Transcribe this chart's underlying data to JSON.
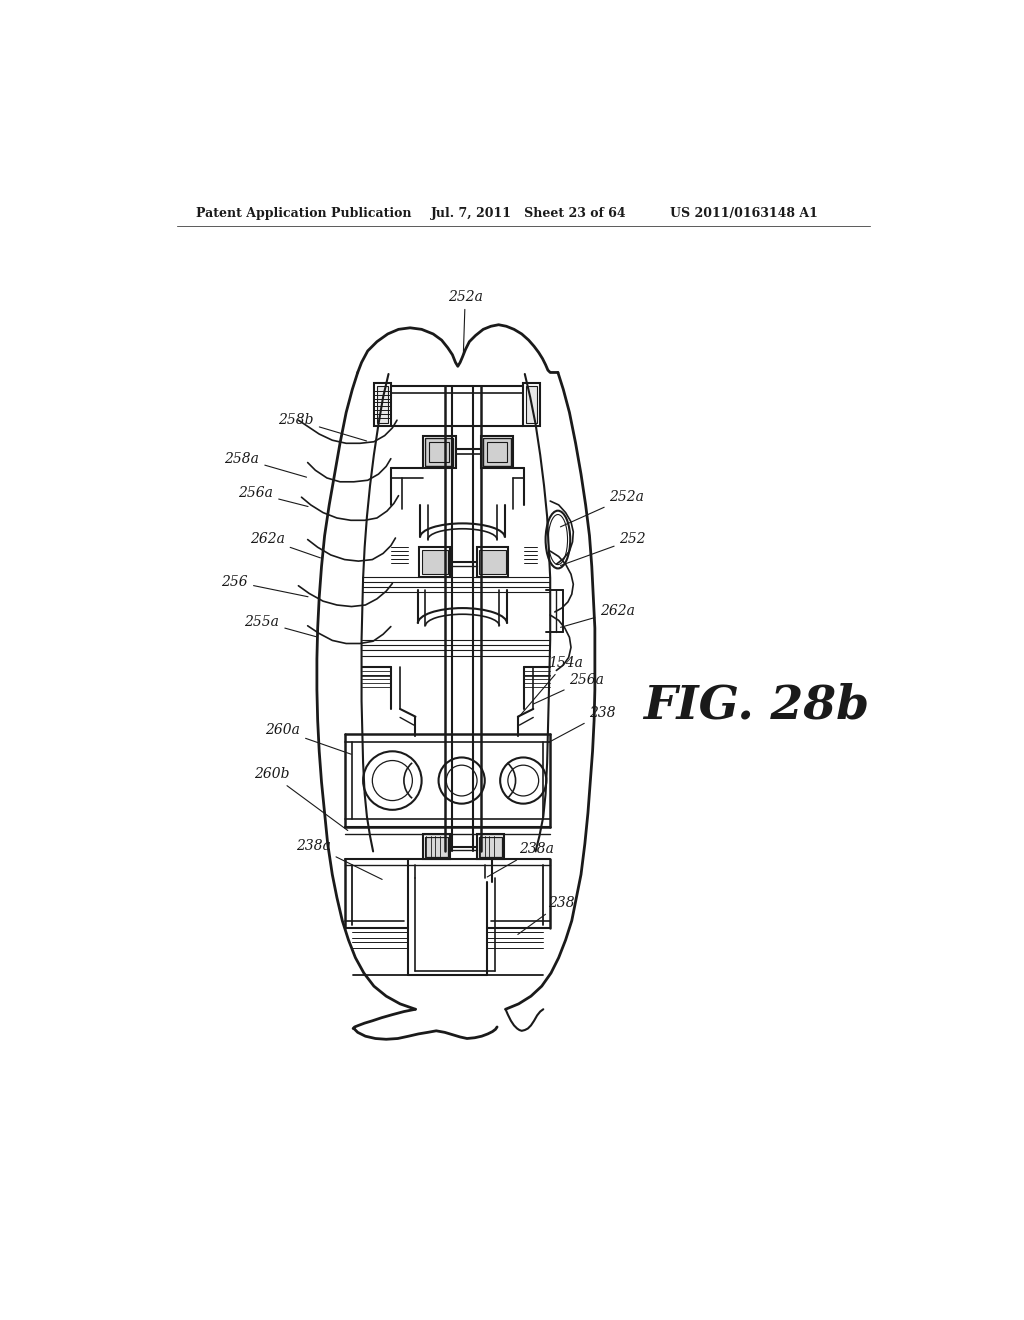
{
  "title": "FIG. 28b",
  "patent_header_left": "Patent Application Publication",
  "patent_header_mid": "Jul. 7, 2011   Sheet 23 of 64",
  "patent_header_right": "US 2011/0163148 A1",
  "bg_color": "#ffffff",
  "line_color": "#1a1a1a",
  "fig_label": "FIG. 28b",
  "labels": {
    "252a_top": [
      "252a",
      420,
      195
    ],
    "258b": [
      "258b",
      192,
      345
    ],
    "258a": [
      "258a",
      122,
      395
    ],
    "256a": [
      "256a",
      140,
      440
    ],
    "262a_l": [
      "262a",
      155,
      500
    ],
    "256": [
      "256",
      118,
      555
    ],
    "255a": [
      "255a",
      148,
      610
    ],
    "252a_r": [
      "252a",
      640,
      445
    ],
    "252": [
      "252",
      643,
      500
    ],
    "262a_r": [
      "262a",
      622,
      595
    ],
    "154a": [
      "154a",
      558,
      665
    ],
    "256a_r": [
      "256a",
      580,
      688
    ],
    "238_r": [
      "238",
      608,
      730
    ],
    "260a": [
      "260a",
      178,
      748
    ],
    "260b": [
      "260b",
      162,
      808
    ],
    "238a_l": [
      "238a",
      218,
      900
    ],
    "238a_r": [
      "238a",
      512,
      905
    ],
    "238_b": [
      "238",
      552,
      975
    ]
  }
}
